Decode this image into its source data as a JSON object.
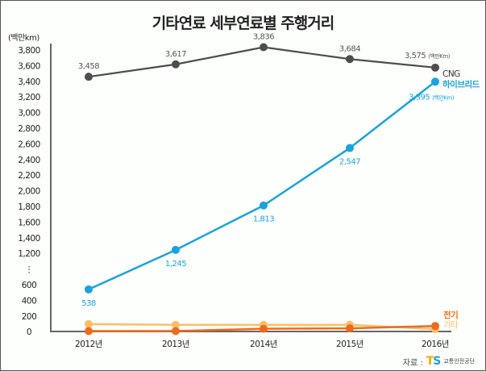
{
  "title": "기타연료 세부연료별 주행거리",
  "source": {
    "label": "자료 :",
    "logo_letters": [
      "T",
      "S"
    ],
    "org": "교통안전공단"
  },
  "colors": {
    "cng": "#4d4d4d",
    "hybrid": "#1aa3dc",
    "electric": "#ee6a1a",
    "other": "#f9c06a",
    "axis": "#666666"
  },
  "chart_data": {
    "type": "line",
    "title": "기타연료 세부연료별 주행거리",
    "ylabel": "(백만km)",
    "xlabel": "",
    "categories": [
      "2012년",
      "2013년",
      "2014년",
      "2015년",
      "2016년"
    ],
    "yticks": [
      "3,800",
      "3,600",
      "3,400",
      "3,200",
      "3,000",
      "2,800",
      "2,600",
      "2,400",
      "2,200",
      "2,000",
      "1,800",
      "1,600",
      "1,400",
      "1,200",
      "⋮",
      "600",
      "400",
      "200",
      "0"
    ],
    "ylim": [
      0,
      3800
    ],
    "axis_break": [
      600,
      1200
    ],
    "grid": false,
    "series": [
      {
        "name": "CNG",
        "key": "cng",
        "values": [
          3458,
          3617,
          3836,
          3684,
          3575
        ],
        "labels": [
          "3,458",
          "3,617",
          "3,836",
          "3,684",
          "3,575"
        ],
        "end_unit": "(백만Km)"
      },
      {
        "name": "하이브리드",
        "key": "hybrid",
        "values": [
          538,
          1245,
          1813,
          2547,
          3395
        ],
        "labels": [
          "538",
          "1,245",
          "1,813",
          "2,547",
          "3,395"
        ],
        "end_unit": "(백만Km)"
      },
      {
        "name": "전기",
        "key": "electric",
        "values": [
          5,
          5,
          35,
          40,
          70
        ]
      },
      {
        "name": "기타",
        "key": "other",
        "values": [
          95,
          85,
          85,
          85,
          30
        ]
      }
    ]
  }
}
